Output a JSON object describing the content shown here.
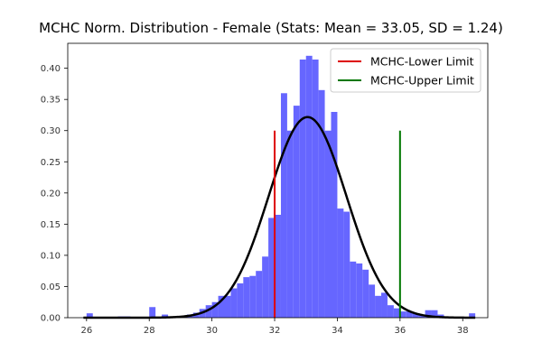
{
  "chart_data": {
    "type": "bar",
    "title": "MCHC Norm. Distribution - Female (Stats: Mean = 33.05,  SD = 1.24)",
    "xlabel": "",
    "ylabel": "",
    "xlim": [
      25.4,
      38.8
    ],
    "ylim": [
      0,
      0.44
    ],
    "grid": false,
    "legend_position": "top-right",
    "x_ticks": [
      26,
      28,
      30,
      32,
      34,
      36,
      38
    ],
    "y_ticks": [
      0.0,
      0.05,
      0.1,
      0.15,
      0.2,
      0.25,
      0.3,
      0.35,
      0.4
    ],
    "y_tick_labels": [
      "0.00",
      "0.05",
      "0.10",
      "0.15",
      "0.20",
      "0.25",
      "0.30",
      "0.35",
      "0.40"
    ],
    "histogram": {
      "bin_width": 0.2,
      "bar_color": "#6666ff",
      "bins": [
        [
          26.0,
          0.007
        ],
        [
          27.0,
          0.002
        ],
        [
          27.2,
          0.002
        ],
        [
          28.0,
          0.017
        ],
        [
          28.4,
          0.005
        ],
        [
          28.6,
          0.002
        ],
        [
          29.0,
          0.002
        ],
        [
          29.2,
          0.005
        ],
        [
          29.4,
          0.008
        ],
        [
          29.6,
          0.014
        ],
        [
          29.8,
          0.02
        ],
        [
          30.0,
          0.025
        ],
        [
          30.2,
          0.035
        ],
        [
          30.4,
          0.035
        ],
        [
          30.6,
          0.047
        ],
        [
          30.8,
          0.055
        ],
        [
          31.0,
          0.065
        ],
        [
          31.2,
          0.067
        ],
        [
          31.4,
          0.075
        ],
        [
          31.6,
          0.098
        ],
        [
          31.8,
          0.16
        ],
        [
          32.0,
          0.165
        ],
        [
          32.2,
          0.36
        ],
        [
          32.4,
          0.3
        ],
        [
          32.6,
          0.34
        ],
        [
          32.8,
          0.414
        ],
        [
          33.0,
          0.42
        ],
        [
          33.2,
          0.414
        ],
        [
          33.4,
          0.365
        ],
        [
          33.6,
          0.3
        ],
        [
          33.8,
          0.33
        ],
        [
          34.0,
          0.175
        ],
        [
          34.2,
          0.17
        ],
        [
          34.4,
          0.09
        ],
        [
          34.6,
          0.087
        ],
        [
          34.8,
          0.077
        ],
        [
          35.0,
          0.053
        ],
        [
          35.2,
          0.035
        ],
        [
          35.4,
          0.04
        ],
        [
          35.6,
          0.02
        ],
        [
          35.8,
          0.015
        ],
        [
          36.0,
          0.01
        ],
        [
          36.2,
          0.01
        ],
        [
          36.4,
          0.007
        ],
        [
          36.6,
          0.005
        ],
        [
          36.8,
          0.012
        ],
        [
          37.0,
          0.012
        ],
        [
          37.2,
          0.005
        ],
        [
          37.4,
          0.002
        ],
        [
          38.2,
          0.007
        ]
      ]
    },
    "curve": {
      "type": "normal-pdf",
      "mean": 33.05,
      "sd": 1.24,
      "color": "#000000",
      "x_range": [
        25.9,
        38.4
      ]
    },
    "vlines": [
      {
        "name": "MCHC-Lower Limit",
        "x": 32,
        "y_max": 0.3,
        "color": "#dd0000"
      },
      {
        "name": "MCHC-Upper Limit",
        "x": 36,
        "y_max": 0.3,
        "color": "#007700"
      }
    ]
  }
}
